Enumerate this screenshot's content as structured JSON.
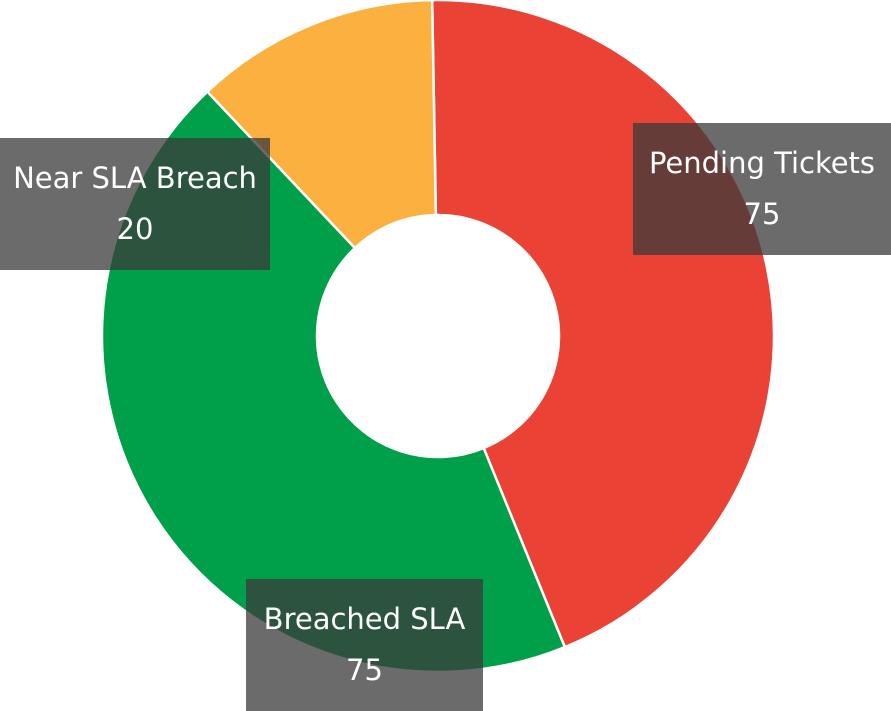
{
  "chart_data": {
    "type": "pie",
    "donut": true,
    "title": "",
    "slices": [
      {
        "name": "Pending Tickets",
        "value": 75,
        "color": "#EA4335"
      },
      {
        "name": "Breached SLA",
        "value": 75,
        "color": "#00A04A"
      },
      {
        "name": "Near SLA Breach",
        "value": 20,
        "color": "#FBB040"
      }
    ],
    "legend": "none",
    "data_labels": true
  }
}
